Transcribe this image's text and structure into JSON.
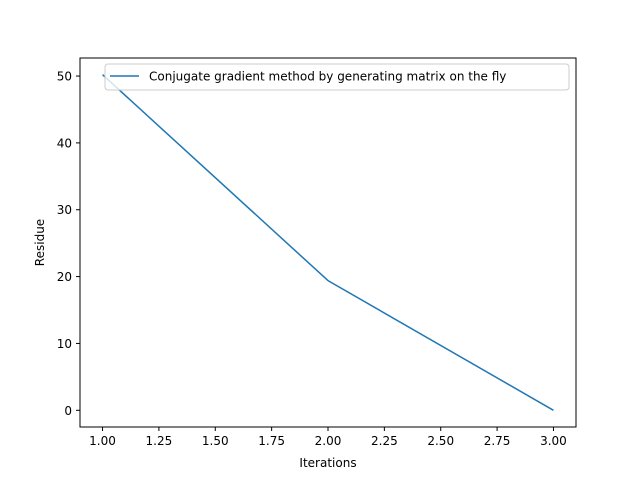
{
  "chart_data": {
    "type": "line",
    "title": "",
    "xlabel": "Iterations",
    "ylabel": "Residue",
    "xlim": [
      0.9,
      3.1
    ],
    "ylim": [
      -2.5,
      52.7
    ],
    "xticks": [
      1.0,
      1.25,
      1.5,
      1.75,
      2.0,
      2.25,
      2.5,
      2.75,
      3.0
    ],
    "xtick_labels": [
      "1.00",
      "1.25",
      "1.50",
      "1.75",
      "2.00",
      "2.25",
      "2.50",
      "2.75",
      "3.00"
    ],
    "yticks": [
      0,
      10,
      20,
      30,
      40,
      50
    ],
    "ytick_labels": [
      "0",
      "10",
      "20",
      "30",
      "40",
      "50"
    ],
    "grid": false,
    "legend_position": "top-right",
    "series": [
      {
        "name": "Conjugate gradient method by generating matrix on the fly",
        "color": "#1f77b4",
        "x": [
          1,
          2,
          3
        ],
        "y": [
          50.2,
          19.4,
          0.0
        ]
      }
    ]
  }
}
